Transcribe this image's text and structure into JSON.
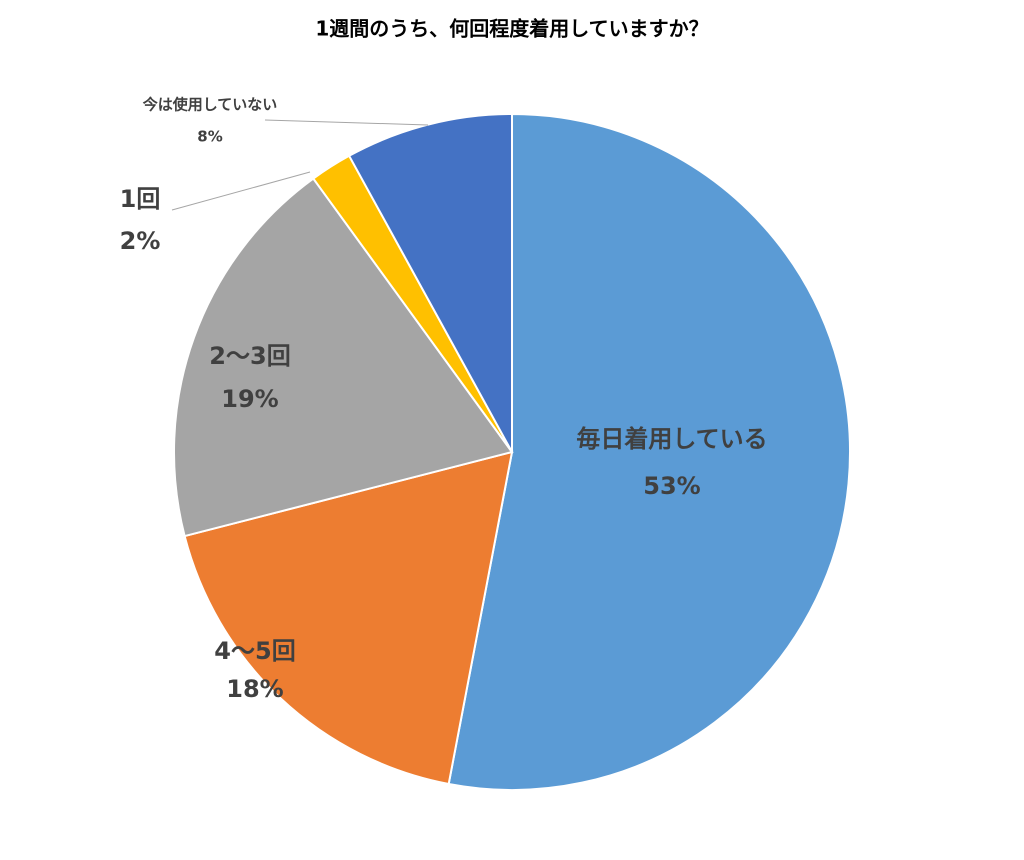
{
  "chart_data": {
    "type": "pie",
    "title": "1週間のうち、何回程度着用していますか？",
    "categories": [
      "毎日着用している",
      "4〜5回",
      "2〜3回",
      "1回",
      "今は使用していない"
    ],
    "values": [
      53,
      18,
      19,
      2,
      8
    ],
    "value_labels": [
      "53%",
      "18%",
      "19%",
      "2%",
      "8%"
    ],
    "colors": [
      "#5b9bd5",
      "#ed7d31",
      "#a5a5a5",
      "#ffc000",
      "#4472c4"
    ]
  }
}
